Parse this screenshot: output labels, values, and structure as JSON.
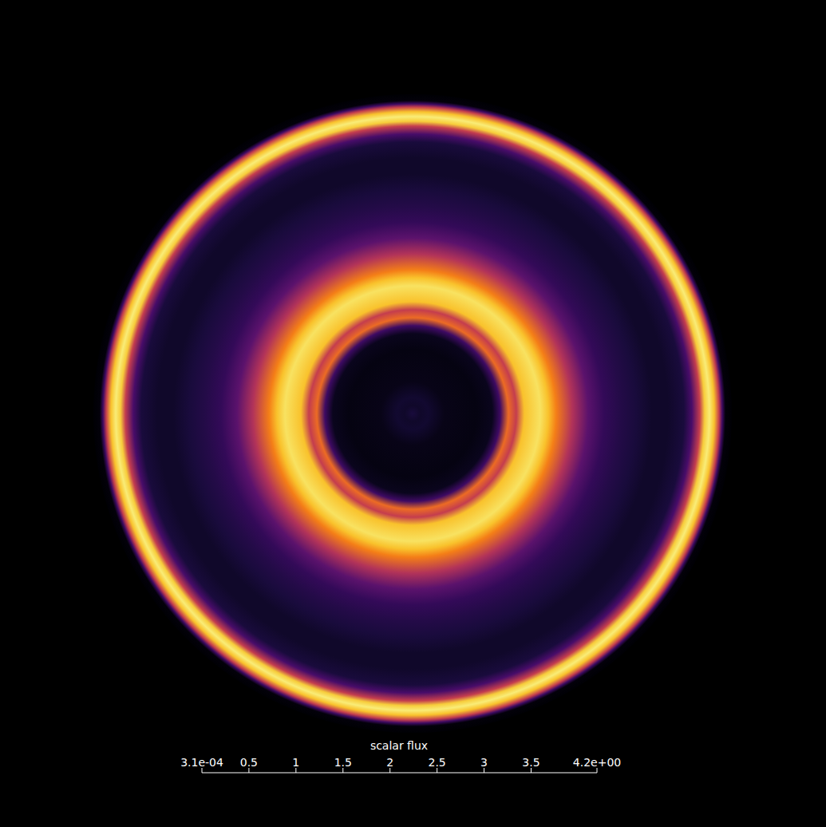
{
  "chart_data": {
    "type": "heatmap",
    "x": [
      0,
      0.025,
      0.05,
      0.1,
      0.2,
      0.25,
      0.275,
      0.3,
      0.325,
      0.35,
      0.4,
      0.425,
      0.45,
      0.5,
      0.55,
      0.6,
      0.65,
      0.7,
      0.75,
      0.8,
      0.85,
      0.875,
      0.9,
      0.915,
      0.93,
      0.945,
      0.96,
      0.97,
      0.98,
      1
    ],
    "values": [
      0.45,
      0.3,
      0.35,
      0.15,
      0.1,
      0.2,
      0.8,
      2.8,
      2.2,
      3.6,
      3.9,
      3.6,
      3.0,
      2.0,
      1.1,
      0.7,
      0.55,
      0.45,
      0.3,
      0.3,
      0.45,
      0.9,
      2.2,
      3.7,
      4.0,
      3.6,
      2.2,
      0.8,
      0.05,
      0.00031
    ],
    "xlim": [
      0,
      1
    ],
    "tick_labels": false,
    "colorbar": {
      "label": "scalar flux",
      "range": [
        0.00031,
        4.2
      ],
      "ticks": [
        {
          "value": 0.00031,
          "label": "3.1e-04"
        },
        0.5,
        1,
        1.5,
        2,
        2.5,
        3,
        3.5,
        {
          "value": 4.2,
          "label": "4.2e+00"
        }
      ]
    }
  }
}
